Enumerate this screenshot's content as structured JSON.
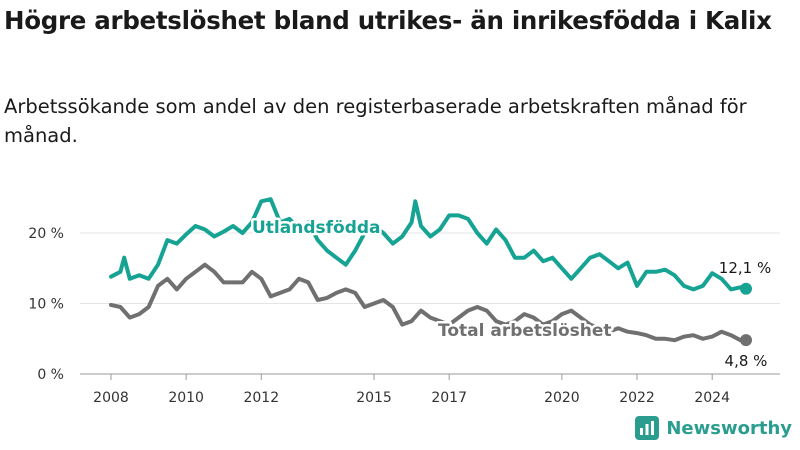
{
  "title": "Högre arbetslöshet bland utrikes- än inrikesfödda i Kalix",
  "subtitle": "Arbetssökande som andel av den registerbaserade arbetskraften månad för månad.",
  "brand": "Newsworthy",
  "colors": {
    "utlandsfodda": "#16a394",
    "total": "#707070",
    "grid": "#e4e4e4",
    "text": "#1a1a1a"
  },
  "chart_data": {
    "type": "line",
    "title": "Högre arbetslöshet bland utrikes- än inrikesfödda i Kalix",
    "xlabel": "",
    "ylabel": "",
    "x_range": [
      2008,
      2024.9
    ],
    "ylim": [
      0,
      25
    ],
    "yticks": [
      {
        "v": 0,
        "label": "0 %"
      },
      {
        "v": 10,
        "label": "10 %"
      },
      {
        "v": 20,
        "label": "20 %"
      }
    ],
    "xticks": [
      2008,
      2010,
      2012,
      2015,
      2017,
      2020,
      2022,
      2024
    ],
    "grid": true,
    "legend": "inline labels",
    "series": [
      {
        "name": "Utlandsfödda",
        "color": "#16a394",
        "end_label": "12,1 %",
        "points": [
          [
            2008.0,
            13.8
          ],
          [
            2008.25,
            14.5
          ],
          [
            2008.35,
            16.5
          ],
          [
            2008.5,
            13.5
          ],
          [
            2008.75,
            14.0
          ],
          [
            2009.0,
            13.5
          ],
          [
            2009.25,
            15.5
          ],
          [
            2009.5,
            19.0
          ],
          [
            2009.75,
            18.5
          ],
          [
            2010.0,
            19.8
          ],
          [
            2010.25,
            21.0
          ],
          [
            2010.5,
            20.5
          ],
          [
            2010.75,
            19.5
          ],
          [
            2011.0,
            20.2
          ],
          [
            2011.25,
            21.0
          ],
          [
            2011.5,
            20.0
          ],
          [
            2011.75,
            21.5
          ],
          [
            2012.0,
            24.5
          ],
          [
            2012.25,
            24.8
          ],
          [
            2012.5,
            21.5
          ],
          [
            2012.75,
            22.0
          ],
          [
            2013.0,
            20.5
          ],
          [
            2013.25,
            21.5
          ],
          [
            2013.5,
            19.0
          ],
          [
            2013.75,
            17.5
          ],
          [
            2014.0,
            16.5
          ],
          [
            2014.25,
            15.5
          ],
          [
            2014.5,
            17.5
          ],
          [
            2014.75,
            20.0
          ],
          [
            2015.0,
            21.0
          ],
          [
            2015.25,
            20.0
          ],
          [
            2015.5,
            18.5
          ],
          [
            2015.75,
            19.5
          ],
          [
            2016.0,
            21.5
          ],
          [
            2016.1,
            24.5
          ],
          [
            2016.25,
            21.0
          ],
          [
            2016.5,
            19.5
          ],
          [
            2016.75,
            20.5
          ],
          [
            2017.0,
            22.5
          ],
          [
            2017.25,
            22.5
          ],
          [
            2017.5,
            22.0
          ],
          [
            2017.75,
            20.0
          ],
          [
            2018.0,
            18.5
          ],
          [
            2018.25,
            20.5
          ],
          [
            2018.5,
            19.0
          ],
          [
            2018.75,
            16.5
          ],
          [
            2019.0,
            16.5
          ],
          [
            2019.25,
            17.5
          ],
          [
            2019.5,
            16.0
          ],
          [
            2019.75,
            16.5
          ],
          [
            2020.0,
            15.0
          ],
          [
            2020.25,
            13.5
          ],
          [
            2020.5,
            15.0
          ],
          [
            2020.75,
            16.5
          ],
          [
            2021.0,
            17.0
          ],
          [
            2021.25,
            16.0
          ],
          [
            2021.5,
            15.0
          ],
          [
            2021.75,
            15.8
          ],
          [
            2022.0,
            12.5
          ],
          [
            2022.25,
            14.5
          ],
          [
            2022.5,
            14.5
          ],
          [
            2022.75,
            14.8
          ],
          [
            2023.0,
            14.0
          ],
          [
            2023.25,
            12.5
          ],
          [
            2023.5,
            12.0
          ],
          [
            2023.75,
            12.5
          ],
          [
            2024.0,
            14.3
          ],
          [
            2024.25,
            13.5
          ],
          [
            2024.5,
            12.0
          ],
          [
            2024.75,
            12.3
          ],
          [
            2024.9,
            12.1
          ]
        ]
      },
      {
        "name": "Total arbetslöshet",
        "color": "#707070",
        "end_label": "4,8 %",
        "points": [
          [
            2008.0,
            9.8
          ],
          [
            2008.25,
            9.5
          ],
          [
            2008.5,
            8.0
          ],
          [
            2008.75,
            8.5
          ],
          [
            2009.0,
            9.5
          ],
          [
            2009.25,
            12.5
          ],
          [
            2009.5,
            13.5
          ],
          [
            2009.75,
            12.0
          ],
          [
            2010.0,
            13.5
          ],
          [
            2010.25,
            14.5
          ],
          [
            2010.5,
            15.5
          ],
          [
            2010.75,
            14.5
          ],
          [
            2011.0,
            13.0
          ],
          [
            2011.25,
            13.0
          ],
          [
            2011.5,
            13.0
          ],
          [
            2011.75,
            14.5
          ],
          [
            2012.0,
            13.5
          ],
          [
            2012.25,
            11.0
          ],
          [
            2012.5,
            11.5
          ],
          [
            2012.75,
            12.0
          ],
          [
            2013.0,
            13.5
          ],
          [
            2013.25,
            13.0
          ],
          [
            2013.5,
            10.5
          ],
          [
            2013.75,
            10.8
          ],
          [
            2014.0,
            11.5
          ],
          [
            2014.25,
            12.0
          ],
          [
            2014.5,
            11.5
          ],
          [
            2014.75,
            9.5
          ],
          [
            2015.0,
            10.0
          ],
          [
            2015.25,
            10.5
          ],
          [
            2015.5,
            9.5
          ],
          [
            2015.75,
            7.0
          ],
          [
            2016.0,
            7.5
          ],
          [
            2016.25,
            9.0
          ],
          [
            2016.5,
            8.0
          ],
          [
            2016.75,
            7.5
          ],
          [
            2017.0,
            7.0
          ],
          [
            2017.25,
            8.0
          ],
          [
            2017.5,
            9.0
          ],
          [
            2017.75,
            9.5
          ],
          [
            2018.0,
            9.0
          ],
          [
            2018.25,
            7.5
          ],
          [
            2018.5,
            7.0
          ],
          [
            2018.75,
            7.5
          ],
          [
            2019.0,
            8.5
          ],
          [
            2019.25,
            8.0
          ],
          [
            2019.5,
            7.0
          ],
          [
            2019.75,
            7.5
          ],
          [
            2020.0,
            8.5
          ],
          [
            2020.25,
            9.0
          ],
          [
            2020.5,
            8.0
          ],
          [
            2020.75,
            7.0
          ],
          [
            2021.0,
            6.5
          ],
          [
            2021.25,
            6.0
          ],
          [
            2021.5,
            6.5
          ],
          [
            2021.75,
            6.0
          ],
          [
            2022.0,
            5.8
          ],
          [
            2022.25,
            5.5
          ],
          [
            2022.5,
            5.0
          ],
          [
            2022.75,
            5.0
          ],
          [
            2023.0,
            4.8
          ],
          [
            2023.25,
            5.3
          ],
          [
            2023.5,
            5.5
          ],
          [
            2023.75,
            5.0
          ],
          [
            2024.0,
            5.3
          ],
          [
            2024.25,
            6.0
          ],
          [
            2024.5,
            5.5
          ],
          [
            2024.75,
            4.8
          ],
          [
            2024.9,
            4.8
          ]
        ]
      }
    ]
  }
}
